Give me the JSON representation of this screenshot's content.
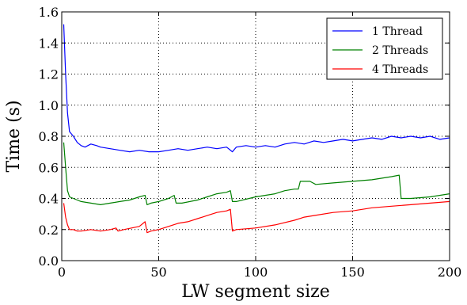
{
  "chart_data": {
    "type": "line",
    "xlabel": "LW segment size",
    "ylabel": "Time (s)",
    "xlim": [
      0,
      200
    ],
    "ylim": [
      0.0,
      1.6
    ],
    "xticks": [
      0,
      50,
      100,
      150,
      200
    ],
    "yticks": [
      0.0,
      0.2,
      0.4,
      0.6,
      0.8,
      1.0,
      1.2,
      1.4,
      1.6
    ],
    "xtick_labels": [
      "0",
      "50",
      "100",
      "150",
      "200"
    ],
    "ytick_labels": [
      "0.0",
      "0.2",
      "0.4",
      "0.6",
      "0.8",
      "1.0",
      "1.2",
      "1.4",
      "1.6"
    ],
    "grid": true,
    "legend_position": "top-right",
    "series": [
      {
        "name": "1 Thread",
        "color": "#0000ff",
        "points": [
          [
            1,
            1.52
          ],
          [
            2,
            1.2
          ],
          [
            3,
            0.95
          ],
          [
            4,
            0.83
          ],
          [
            6,
            0.8
          ],
          [
            8,
            0.76
          ],
          [
            10,
            0.74
          ],
          [
            12,
            0.73
          ],
          [
            15,
            0.75
          ],
          [
            18,
            0.74
          ],
          [
            20,
            0.73
          ],
          [
            25,
            0.72
          ],
          [
            30,
            0.71
          ],
          [
            35,
            0.7
          ],
          [
            40,
            0.71
          ],
          [
            45,
            0.7
          ],
          [
            50,
            0.7
          ],
          [
            55,
            0.71
          ],
          [
            60,
            0.72
          ],
          [
            65,
            0.71
          ],
          [
            70,
            0.72
          ],
          [
            75,
            0.73
          ],
          [
            80,
            0.72
          ],
          [
            85,
            0.73
          ],
          [
            88,
            0.7
          ],
          [
            90,
            0.73
          ],
          [
            95,
            0.74
          ],
          [
            100,
            0.73
          ],
          [
            105,
            0.74
          ],
          [
            110,
            0.73
          ],
          [
            115,
            0.75
          ],
          [
            120,
            0.76
          ],
          [
            125,
            0.75
          ],
          [
            130,
            0.77
          ],
          [
            135,
            0.76
          ],
          [
            140,
            0.77
          ],
          [
            145,
            0.78
          ],
          [
            150,
            0.77
          ],
          [
            155,
            0.78
          ],
          [
            160,
            0.79
          ],
          [
            165,
            0.78
          ],
          [
            170,
            0.8
          ],
          [
            175,
            0.79
          ],
          [
            180,
            0.8
          ],
          [
            185,
            0.79
          ],
          [
            190,
            0.8
          ],
          [
            195,
            0.78
          ],
          [
            200,
            0.79
          ]
        ]
      },
      {
        "name": "2 Threads",
        "color": "#008000",
        "points": [
          [
            1,
            0.76
          ],
          [
            2,
            0.6
          ],
          [
            3,
            0.45
          ],
          [
            4,
            0.41
          ],
          [
            6,
            0.4
          ],
          [
            8,
            0.39
          ],
          [
            10,
            0.38
          ],
          [
            15,
            0.37
          ],
          [
            20,
            0.36
          ],
          [
            25,
            0.37
          ],
          [
            30,
            0.38
          ],
          [
            35,
            0.39
          ],
          [
            40,
            0.41
          ],
          [
            43,
            0.42
          ],
          [
            44,
            0.36
          ],
          [
            46,
            0.37
          ],
          [
            50,
            0.38
          ],
          [
            55,
            0.4
          ],
          [
            58,
            0.42
          ],
          [
            59,
            0.37
          ],
          [
            62,
            0.37
          ],
          [
            70,
            0.39
          ],
          [
            75,
            0.41
          ],
          [
            80,
            0.43
          ],
          [
            85,
            0.44
          ],
          [
            87,
            0.45
          ],
          [
            88,
            0.38
          ],
          [
            90,
            0.38
          ],
          [
            100,
            0.41
          ],
          [
            110,
            0.43
          ],
          [
            115,
            0.45
          ],
          [
            120,
            0.46
          ],
          [
            122,
            0.46
          ],
          [
            123,
            0.51
          ],
          [
            128,
            0.51
          ],
          [
            131,
            0.49
          ],
          [
            140,
            0.5
          ],
          [
            150,
            0.51
          ],
          [
            160,
            0.52
          ],
          [
            170,
            0.54
          ],
          [
            174,
            0.55
          ],
          [
            175,
            0.4
          ],
          [
            180,
            0.4
          ],
          [
            190,
            0.41
          ],
          [
            200,
            0.43
          ]
        ]
      },
      {
        "name": "4 Threads",
        "color": "#ff0000",
        "points": [
          [
            1,
            0.37
          ],
          [
            2,
            0.28
          ],
          [
            3,
            0.23
          ],
          [
            4,
            0.2
          ],
          [
            6,
            0.2
          ],
          [
            8,
            0.19
          ],
          [
            10,
            0.19
          ],
          [
            15,
            0.2
          ],
          [
            20,
            0.19
          ],
          [
            25,
            0.2
          ],
          [
            28,
            0.21
          ],
          [
            29,
            0.19
          ],
          [
            32,
            0.2
          ],
          [
            36,
            0.21
          ],
          [
            40,
            0.22
          ],
          [
            43,
            0.25
          ],
          [
            44,
            0.18
          ],
          [
            46,
            0.19
          ],
          [
            50,
            0.2
          ],
          [
            60,
            0.24
          ],
          [
            65,
            0.25
          ],
          [
            70,
            0.27
          ],
          [
            75,
            0.29
          ],
          [
            80,
            0.31
          ],
          [
            85,
            0.32
          ],
          [
            87,
            0.33
          ],
          [
            88,
            0.19
          ],
          [
            90,
            0.2
          ],
          [
            100,
            0.21
          ],
          [
            110,
            0.23
          ],
          [
            120,
            0.26
          ],
          [
            125,
            0.28
          ],
          [
            130,
            0.29
          ],
          [
            140,
            0.31
          ],
          [
            150,
            0.32
          ],
          [
            160,
            0.34
          ],
          [
            170,
            0.35
          ],
          [
            180,
            0.36
          ],
          [
            190,
            0.37
          ],
          [
            200,
            0.38
          ]
        ]
      }
    ]
  }
}
